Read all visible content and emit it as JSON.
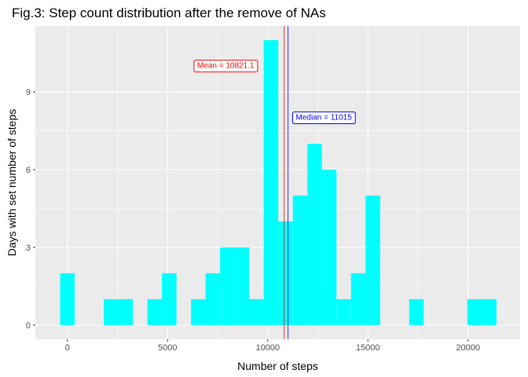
{
  "chart_data": {
    "type": "bar",
    "title": "Fig.3: Step count distribution after the remove of NAs",
    "xlabel": "Number of steps",
    "ylabel": "Days with set number of steps",
    "xlim": [
      -1600,
      22600
    ],
    "ylim": [
      -0.55,
      11.55
    ],
    "x_ticks": [
      0,
      5000,
      10000,
      15000,
      20000
    ],
    "x_tick_labels": [
      "0",
      "5000",
      "10000",
      "15000",
      "20000"
    ],
    "y_ticks": [
      0,
      3,
      6,
      9
    ],
    "y_tick_labels": [
      "0",
      "3",
      "6",
      "9"
    ],
    "bin_width": 726,
    "bins": [
      {
        "x": 0,
        "count": 2
      },
      {
        "x": 726,
        "count": 0
      },
      {
        "x": 1452,
        "count": 0
      },
      {
        "x": 2178,
        "count": 1
      },
      {
        "x": 2904,
        "count": 1
      },
      {
        "x": 3630,
        "count": 0
      },
      {
        "x": 4356,
        "count": 1
      },
      {
        "x": 5082,
        "count": 2
      },
      {
        "x": 5808,
        "count": 0
      },
      {
        "x": 6534,
        "count": 1
      },
      {
        "x": 7260,
        "count": 2
      },
      {
        "x": 7986,
        "count": 3
      },
      {
        "x": 8712,
        "count": 3
      },
      {
        "x": 9438,
        "count": 1
      },
      {
        "x": 10164,
        "count": 11
      },
      {
        "x": 10890,
        "count": 4
      },
      {
        "x": 11616,
        "count": 5
      },
      {
        "x": 12342,
        "count": 7
      },
      {
        "x": 13068,
        "count": 6
      },
      {
        "x": 13794,
        "count": 1
      },
      {
        "x": 14520,
        "count": 2
      },
      {
        "x": 15246,
        "count": 5
      },
      {
        "x": 15972,
        "count": 0
      },
      {
        "x": 16698,
        "count": 0
      },
      {
        "x": 17424,
        "count": 1
      },
      {
        "x": 18150,
        "count": 0
      },
      {
        "x": 18876,
        "count": 0
      },
      {
        "x": 19602,
        "count": 0
      },
      {
        "x": 20328,
        "count": 1
      },
      {
        "x": 21054,
        "count": 1
      }
    ],
    "grid": true,
    "colors": {
      "bar_fill": "#00ffff",
      "panel_background": "#ebebeb",
      "grid": "#ffffff",
      "mean": "#ff0000",
      "median": "#0000ff"
    },
    "annotations": [
      {
        "name": "mean",
        "value": 10821.1,
        "label": "Mean = 10821.1",
        "label_x": 7900,
        "label_y": 10,
        "color": "#ff0000"
      },
      {
        "name": "median",
        "value": 11015,
        "label": "Median = 11015",
        "label_x": 12800,
        "label_y": 8,
        "color": "#0000ff"
      }
    ]
  }
}
